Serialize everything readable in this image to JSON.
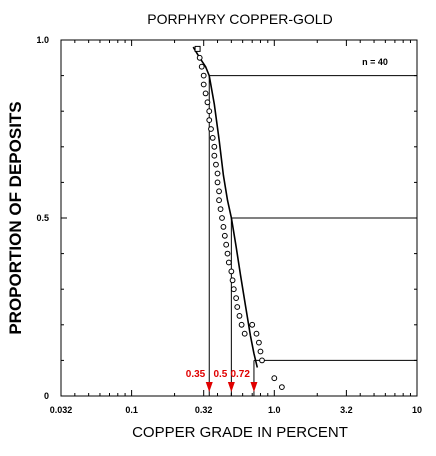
{
  "chart_data": {
    "type": "scatter",
    "title": "PORPHYRY COPPER-GOLD",
    "xlabel": "COPPER GRADE IN PERCENT",
    "ylabel": "PROPORTION OF DEPOSITS",
    "x_scale": "log",
    "xlim": [
      0.032,
      10
    ],
    "ylim": [
      0,
      1
    ],
    "x_ticks": [
      "0.032",
      "0.1",
      "0.32",
      "1.0",
      "3.2",
      "10"
    ],
    "y_ticks": [
      "0",
      "0.5",
      "1.0"
    ],
    "grid": false,
    "annotation": "n = 40",
    "series": [
      {
        "points": [
          [
            0.29,
            0.975
          ],
          [
            0.3,
            0.95
          ],
          [
            0.31,
            0.925
          ],
          [
            0.32,
            0.9
          ],
          [
            0.32,
            0.875
          ],
          [
            0.33,
            0.85
          ],
          [
            0.34,
            0.825
          ],
          [
            0.35,
            0.8
          ],
          [
            0.35,
            0.775
          ],
          [
            0.36,
            0.75
          ],
          [
            0.37,
            0.725
          ],
          [
            0.38,
            0.7
          ],
          [
            0.38,
            0.675
          ],
          [
            0.39,
            0.65
          ],
          [
            0.4,
            0.625
          ],
          [
            0.4,
            0.6
          ],
          [
            0.41,
            0.575
          ],
          [
            0.41,
            0.55
          ],
          [
            0.42,
            0.525
          ],
          [
            0.43,
            0.5
          ],
          [
            0.44,
            0.475
          ],
          [
            0.45,
            0.45
          ],
          [
            0.46,
            0.425
          ],
          [
            0.47,
            0.4
          ],
          [
            0.48,
            0.375
          ],
          [
            0.5,
            0.35
          ],
          [
            0.51,
            0.325
          ],
          [
            0.52,
            0.3
          ],
          [
            0.54,
            0.275
          ],
          [
            0.55,
            0.25
          ],
          [
            0.57,
            0.225
          ],
          [
            0.59,
            0.2
          ],
          [
            0.62,
            0.175
          ],
          [
            0.7,
            0.2
          ],
          [
            0.75,
            0.175
          ],
          [
            0.78,
            0.15
          ],
          [
            0.8,
            0.125
          ],
          [
            0.82,
            0.1
          ],
          [
            1.0,
            0.05
          ],
          [
            1.13,
            0.025
          ]
        ]
      }
    ],
    "fitted_curve": {
      "x": [
        0.27,
        0.3,
        0.33,
        0.35,
        0.38,
        0.41,
        0.44,
        0.47,
        0.5,
        0.54,
        0.58,
        0.63,
        0.68,
        0.72,
        0.76
      ],
      "y": [
        0.98,
        0.95,
        0.925,
        0.9,
        0.82,
        0.72,
        0.62,
        0.55,
        0.5,
        0.42,
        0.34,
        0.25,
        0.17,
        0.12,
        0.08
      ]
    },
    "percentiles": [
      {
        "label": "0.35",
        "x": 0.35,
        "proportion": 0.9
      },
      {
        "label": "0.5",
        "x": 0.5,
        "proportion": 0.5
      },
      {
        "label": "0.72",
        "x": 0.72,
        "proportion": 0.1
      }
    ],
    "colors": {
      "percentile_labels": "#e00000",
      "marks": "#000000"
    }
  }
}
